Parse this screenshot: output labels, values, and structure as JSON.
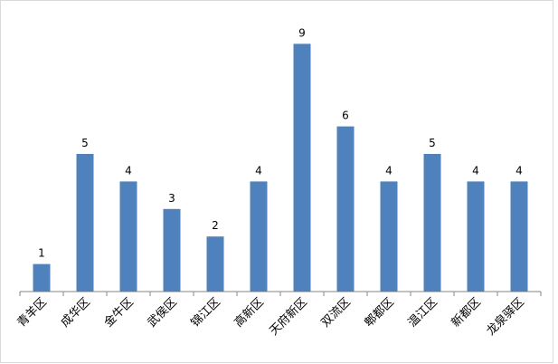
{
  "chart_data": {
    "type": "bar",
    "categories": [
      "青羊区",
      "成华区",
      "金牛区",
      "武侯区",
      "锦江区",
      "高新区",
      "天府新区",
      "双流区",
      "郫都区",
      "温江区",
      "新都区",
      "龙泉驿区"
    ],
    "values": [
      1,
      5,
      4,
      3,
      2,
      4,
      9,
      6,
      4,
      5,
      4,
      4
    ],
    "color": "#4f81bd",
    "ylim": [
      0,
      10
    ]
  }
}
